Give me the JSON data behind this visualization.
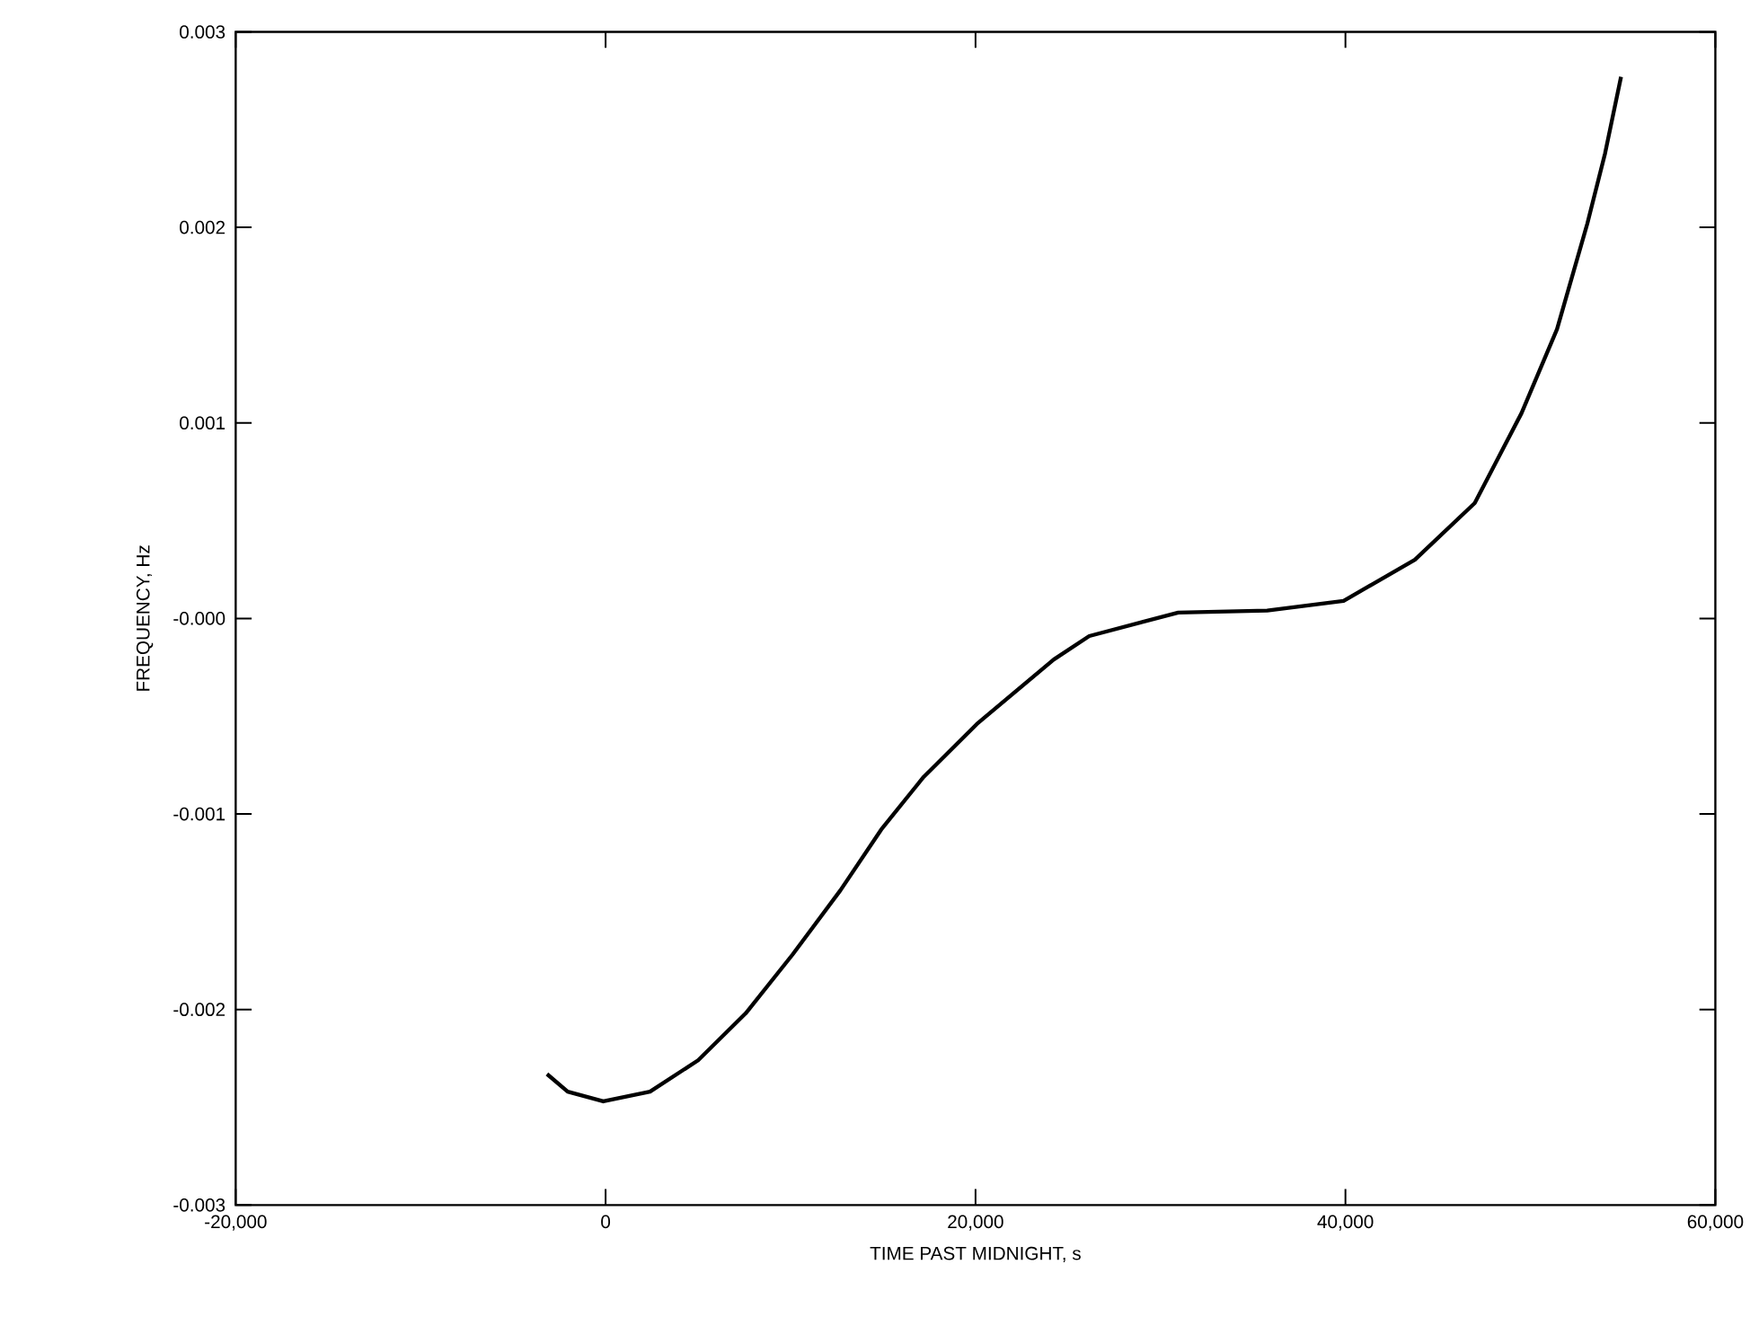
{
  "chart_data": {
    "type": "line",
    "xlabel": "TIME PAST MIDNIGHT, s",
    "ylabel": "FREQUENCY, Hz",
    "xlim": [
      -20000,
      60000
    ],
    "ylim": [
      -0.003,
      0.003
    ],
    "xticks": [
      {
        "value": -20000,
        "label": "-20,000"
      },
      0,
      {
        "value": 20000,
        "label": "20,000"
      },
      {
        "value": 40000,
        "label": "40,000"
      },
      {
        "value": 60000,
        "label": "60,000"
      }
    ],
    "yticks": [
      -0.003,
      -0.002,
      -0.001,
      {
        "value": 0,
        "label": "-0.000"
      },
      0.001,
      0.002,
      0.003
    ],
    "line_style": "solid",
    "marker": "none",
    "series": [
      {
        "color": "#000000",
        "x": [
          -3170,
          -2050,
          -125,
          2400,
          5000,
          7570,
          10100,
          12700,
          14900,
          17200,
          20070,
          24230,
          26150,
          30960,
          35770,
          39900,
          43750,
          46990,
          49520,
          51440,
          53080,
          54040,
          54900
        ],
        "values": [
          -0.00233,
          -0.00242,
          -0.00247,
          -0.00242,
          -0.00226,
          -0.00202,
          -0.00172,
          -0.00139,
          -0.00108,
          -0.00081,
          -0.00054,
          -0.00021,
          -9e-05,
          3e-05,
          4e-05,
          9e-05,
          0.0003,
          0.00059,
          0.00105,
          0.00148,
          0.00202,
          0.00238,
          0.00277
        ]
      }
    ]
  }
}
